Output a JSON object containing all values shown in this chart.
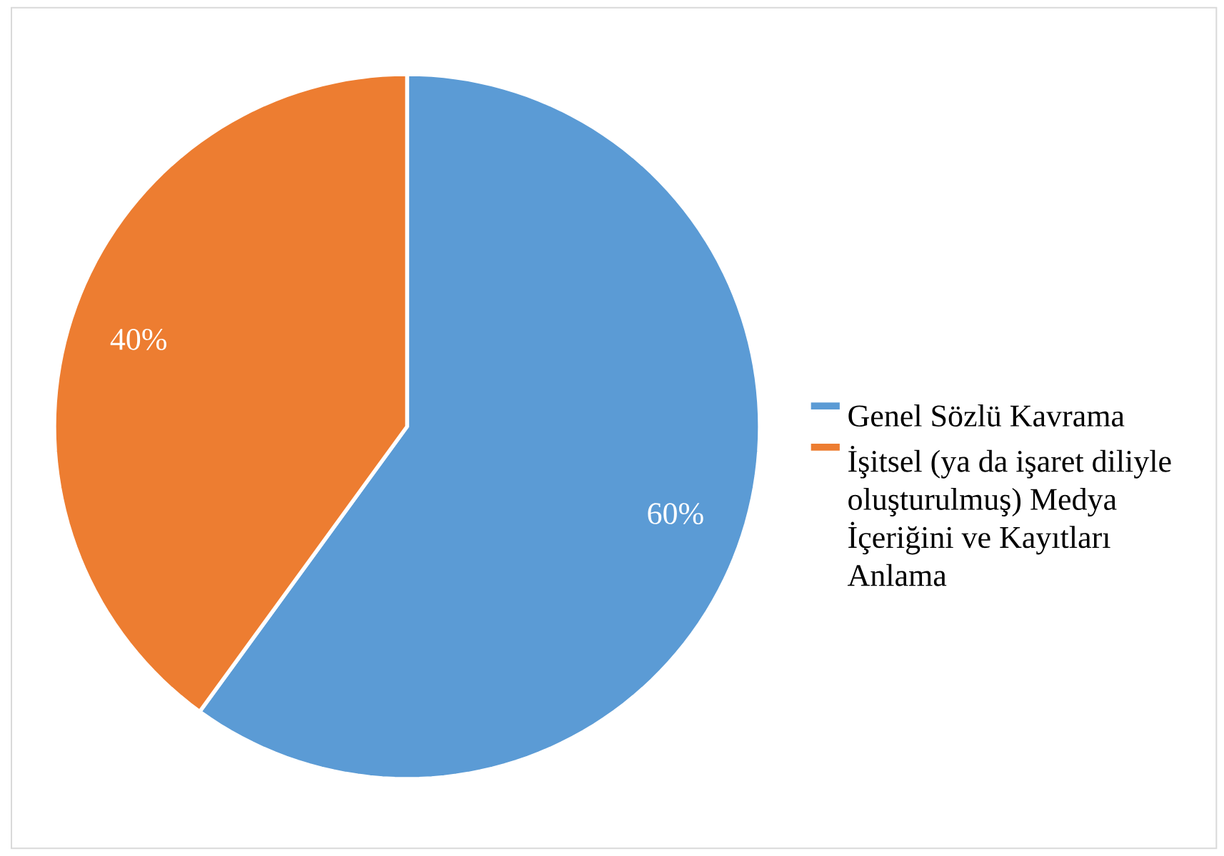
{
  "chart_data": {
    "type": "pie",
    "categories": [
      "Genel Sözlü Kavrama",
      "İşitsel (ya da işaret diliyle oluşturulmuş) Medya İçeriğini ve Kayıtları Anlama"
    ],
    "values": [
      60,
      40
    ],
    "colors": [
      "#5b9bd5",
      "#ed7d31"
    ],
    "value_labels": [
      "60%",
      "40%"
    ],
    "legend": "right"
  }
}
